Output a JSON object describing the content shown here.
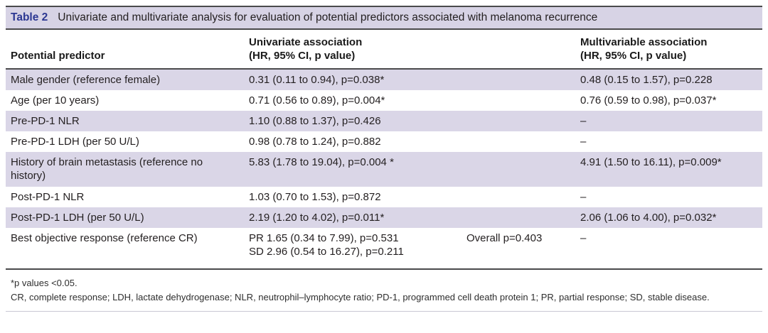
{
  "table": {
    "label": "Table 2",
    "title": "Univariate and multivariate analysis for evaluation of potential predictors associated with melanoma recurrence",
    "columns": {
      "predictor": "Potential predictor",
      "univariate": "Univariate association\n(HR, 95% CI, p value)",
      "multivariable": "Multivariable association\n(HR, 95% CI, p value)"
    },
    "rows": [
      {
        "predictor": "Male gender (reference female)",
        "univariate": "0.31 (0.11 to 0.94), p=0.038*",
        "overall": "",
        "multivariable": "0.48 (0.15 to 1.57), p=0.228"
      },
      {
        "predictor": "Age (per 10 years)",
        "univariate": "0.71 (0.56 to 0.89), p=0.004*",
        "overall": "",
        "multivariable": "0.76 (0.59 to 0.98), p=0.037*"
      },
      {
        "predictor": "Pre-PD-1 NLR",
        "univariate": "1.10 (0.88 to 1.37), p=0.426",
        "overall": "",
        "multivariable": "–"
      },
      {
        "predictor": "Pre-PD-1 LDH (per 50 U/L)",
        "univariate": "0.98 (0.78 to 1.24), p=0.882",
        "overall": "",
        "multivariable": "–"
      },
      {
        "predictor": "History of brain metastasis (reference no history)",
        "univariate": "5.83 (1.78 to 19.04), p=0.004 *",
        "overall": "",
        "multivariable": "4.91 (1.50 to 16.11), p=0.009*"
      },
      {
        "predictor": "Post-PD-1 NLR",
        "univariate": "1.03 (0.70 to 1.53), p=0.872",
        "overall": "",
        "multivariable": "–"
      },
      {
        "predictor": "Post-PD-1 LDH (per 50 U/L)",
        "univariate": "2.19 (1.20 to 4.02), p=0.011*",
        "overall": "",
        "multivariable": "2.06 (1.06 to 4.00), p=0.032*"
      },
      {
        "predictor": "Best objective response (reference CR)",
        "univariate": "PR 1.65 (0.34 to 7.99), p=0.531\nSD 2.96 (0.54 to 16.27), p=0.211",
        "overall": "Overall p=0.403",
        "multivariable": "–"
      }
    ],
    "footnotes": {
      "significance": "*p values <0.05.",
      "abbreviations": "CR, complete response; LDH, lactate dehydrogenase; NLR, neutrophil–lymphocyte ratio; PD-1, programmed cell death protein 1; PR, partial response; SD, stable disease."
    },
    "colors": {
      "title_band_background": "#d7d3e5",
      "row_shade_background": "#dad6e7",
      "table_label_blue": "#2c3792",
      "rule_dark": "#4a4a4c"
    }
  }
}
